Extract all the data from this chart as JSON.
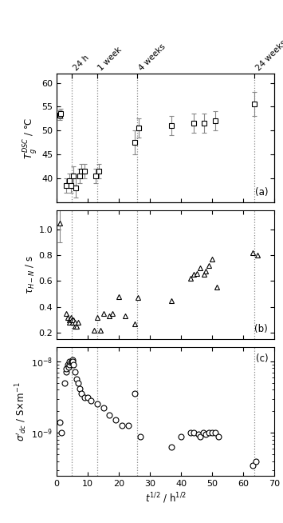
{
  "panel_a": {
    "ylabel": "$T_g^{DSC}$ / °C",
    "ylim": [
      35,
      62
    ],
    "yticks": [
      40,
      45,
      50,
      55,
      60
    ],
    "x": [
      1.0,
      1.4,
      3.0,
      4.0,
      4.5,
      5.5,
      6.2,
      7.5,
      8.0,
      9.0,
      12.5,
      13.5,
      25.0,
      26.5,
      37.0,
      44.0,
      47.5,
      51.0,
      63.5
    ],
    "y": [
      53.2,
      53.5,
      38.5,
      39.5,
      38.5,
      40.5,
      38.0,
      40.5,
      41.5,
      41.5,
      40.5,
      41.5,
      47.5,
      50.5,
      51.0,
      51.5,
      51.5,
      52.0,
      55.5
    ],
    "yerr": [
      1.0,
      1.0,
      1.5,
      1.5,
      1.5,
      2.0,
      2.0,
      1.5,
      1.5,
      1.5,
      1.5,
      1.5,
      2.5,
      2.0,
      2.0,
      2.0,
      2.0,
      2.0,
      2.5
    ],
    "panel_label": "(a)"
  },
  "panel_b": {
    "ylabel": "$\\tau_{H-N}$ / s",
    "ylim": [
      0.15,
      1.15
    ],
    "yticks": [
      0.2,
      0.4,
      0.6,
      0.8,
      1.0
    ],
    "x": [
      1.0,
      3.0,
      3.5,
      4.0,
      4.2,
      4.5,
      4.8,
      5.0,
      5.2,
      5.5,
      5.8,
      6.0,
      6.5,
      7.0,
      12.0,
      13.0,
      14.0,
      15.0,
      17.0,
      18.0,
      20.0,
      22.0,
      25.0,
      26.0,
      37.0,
      43.0,
      44.0,
      45.0,
      46.0,
      47.5,
      48.0,
      49.0,
      50.0,
      51.5,
      63.0,
      64.5
    ],
    "y": [
      1.05,
      0.35,
      0.32,
      0.3,
      0.28,
      0.32,
      0.3,
      0.28,
      0.28,
      0.3,
      0.25,
      0.28,
      0.25,
      0.28,
      0.22,
      0.32,
      0.22,
      0.35,
      0.33,
      0.35,
      0.48,
      0.33,
      0.27,
      0.47,
      0.45,
      0.62,
      0.65,
      0.66,
      0.7,
      0.65,
      0.68,
      0.72,
      0.77,
      0.55,
      0.82,
      0.8
    ],
    "yerr_index": 0,
    "yerr_val": 0.15,
    "panel_label": "(b)"
  },
  "panel_c": {
    "ylabel": "$\\sigma'_{dc}$ / S×m$^{-1}$",
    "x": [
      1.0,
      1.5,
      2.5,
      3.0,
      3.2,
      3.5,
      3.8,
      4.0,
      4.2,
      4.5,
      4.8,
      5.0,
      5.2,
      5.5,
      6.0,
      6.5,
      7.0,
      7.5,
      8.0,
      9.0,
      10.0,
      11.0,
      13.0,
      15.0,
      17.0,
      19.0,
      21.0,
      23.0,
      25.0,
      27.0,
      37.0,
      40.0,
      43.0,
      44.0,
      45.5,
      46.0,
      47.0,
      48.0,
      49.0,
      50.0,
      51.0,
      52.0,
      63.0,
      64.0
    ],
    "y_log10": [
      -8.85,
      -9.0,
      -8.3,
      -8.15,
      -8.1,
      -8.05,
      -8.08,
      -8.05,
      -8.0,
      -8.02,
      -8.0,
      -7.98,
      -8.0,
      -8.05,
      -8.15,
      -8.25,
      -8.3,
      -8.38,
      -8.45,
      -8.5,
      -8.5,
      -8.55,
      -8.6,
      -8.65,
      -8.75,
      -8.82,
      -8.9,
      -8.9,
      -8.45,
      -9.05,
      -9.2,
      -9.05,
      -9.0,
      -9.0,
      -9.02,
      -9.05,
      -9.0,
      -9.02,
      -9.0,
      -9.0,
      -9.0,
      -9.05,
      -9.45,
      -9.4
    ],
    "panel_label": "(c)"
  },
  "vlines": [
    4.9,
    12.96,
    25.98,
    63.5
  ],
  "vline_labels": [
    "24 h",
    "1 week",
    "4 weeks",
    "24 weeks"
  ],
  "xlim": [
    0,
    70
  ],
  "xticks": [
    0,
    10,
    20,
    30,
    40,
    50,
    60,
    70
  ],
  "xlabel": "$t^{1/2}$ / h$^{1/2}$",
  "figsize": [
    3.55,
    6.54
  ],
  "dpi": 100
}
